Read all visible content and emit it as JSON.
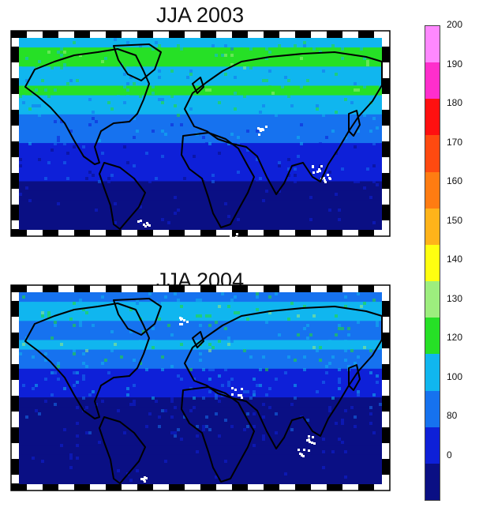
{
  "maps": [
    {
      "title": "JJA 2003"
    },
    {
      "title": "JJA 2004"
    }
  ],
  "colorbar": {
    "tick_labels": [
      "200",
      "190",
      "180",
      "170",
      "160",
      "150",
      "140",
      "130",
      "120",
      "100",
      "80",
      "0"
    ],
    "colors": [
      "#ff88ff",
      "#ff2ecc",
      "#ff1010",
      "#ff4a10",
      "#ff7c12",
      "#ffb31a",
      "#ffff10",
      "#9dee7e",
      "#26e026",
      "#10b6ef",
      "#1672ef",
      "#0e20d8",
      "#0a0f84"
    ]
  }
}
